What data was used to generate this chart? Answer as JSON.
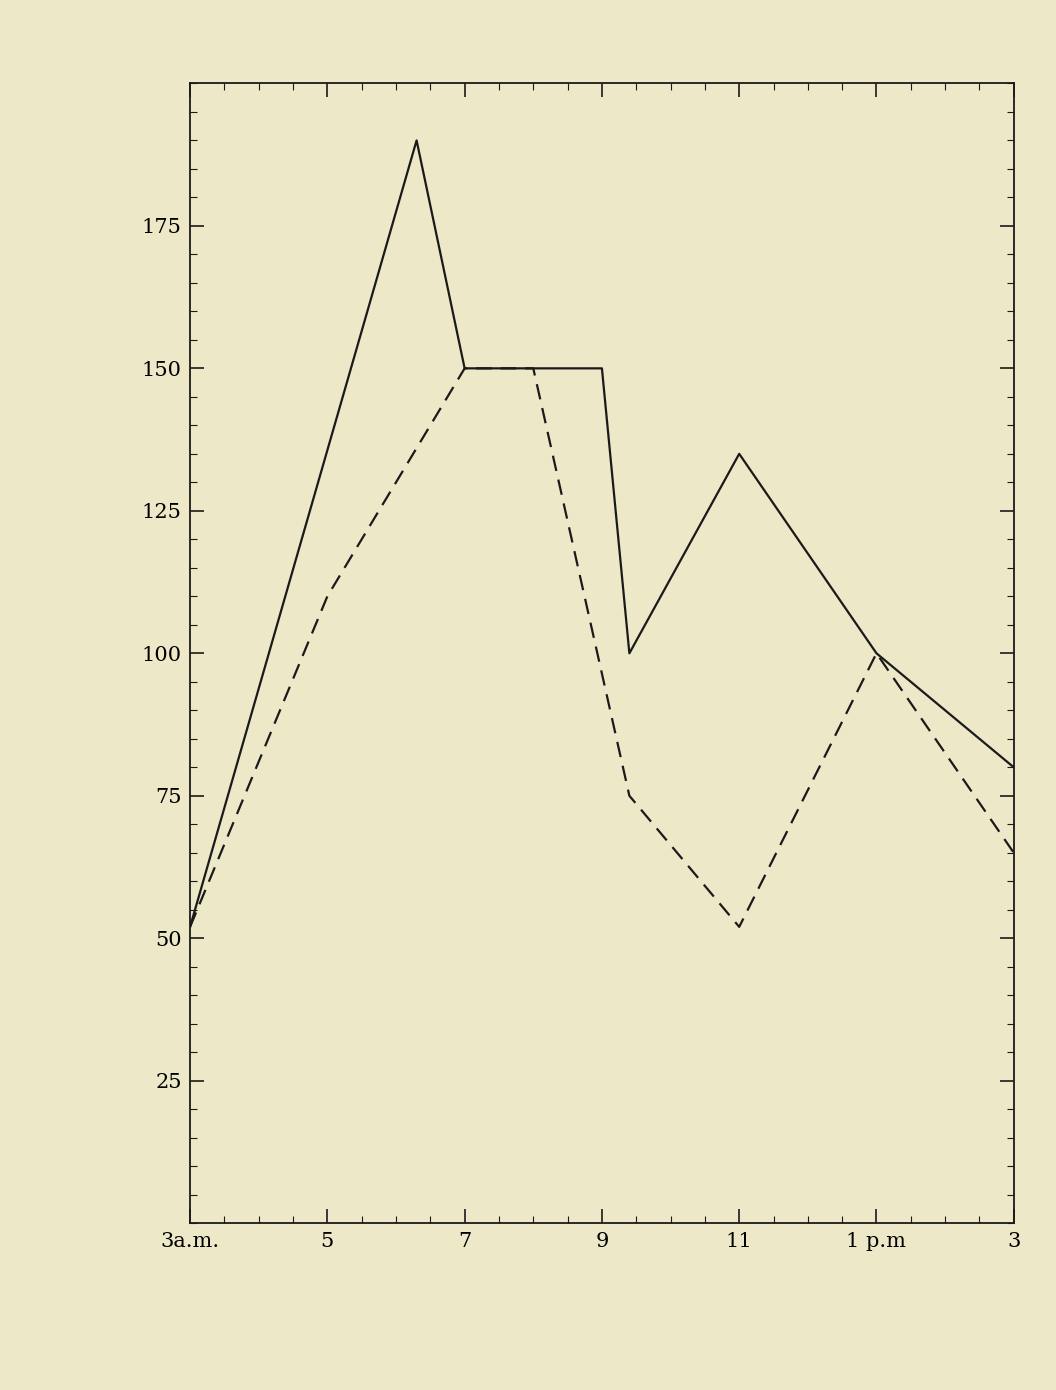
{
  "background_color": "#ede8c8",
  "plot_bg_color": "#ede8c8",
  "solid_line": {
    "x": [
      3,
      6.3,
      7,
      9,
      9.4,
      11,
      13,
      15
    ],
    "y": [
      52,
      190,
      150,
      150,
      100,
      135,
      100,
      80
    ]
  },
  "dashed_line": {
    "x": [
      3,
      5,
      7,
      8,
      9.4,
      11,
      13,
      15
    ],
    "y": [
      52,
      110,
      150,
      150,
      75,
      52,
      100,
      65
    ]
  },
  "xlim": [
    3,
    15
  ],
  "ylim": [
    0,
    200
  ],
  "xtick_positions": [
    3,
    5,
    7,
    9,
    11,
    13,
    15
  ],
  "xtick_labels": [
    "3a.m.",
    "5",
    "7",
    "9",
    "11",
    "1 p.m",
    "3"
  ],
  "ytick_positions": [
    25,
    50,
    75,
    100,
    125,
    150,
    175
  ],
  "ytick_labels": [
    "25",
    "50",
    "75",
    "100",
    "125",
    "150",
    "175"
  ],
  "line_color": "#1a1a1a",
  "linewidth": 1.6,
  "tick_fontsize": 15,
  "minor_x_per_major": 4,
  "minor_y_per_major": 5
}
